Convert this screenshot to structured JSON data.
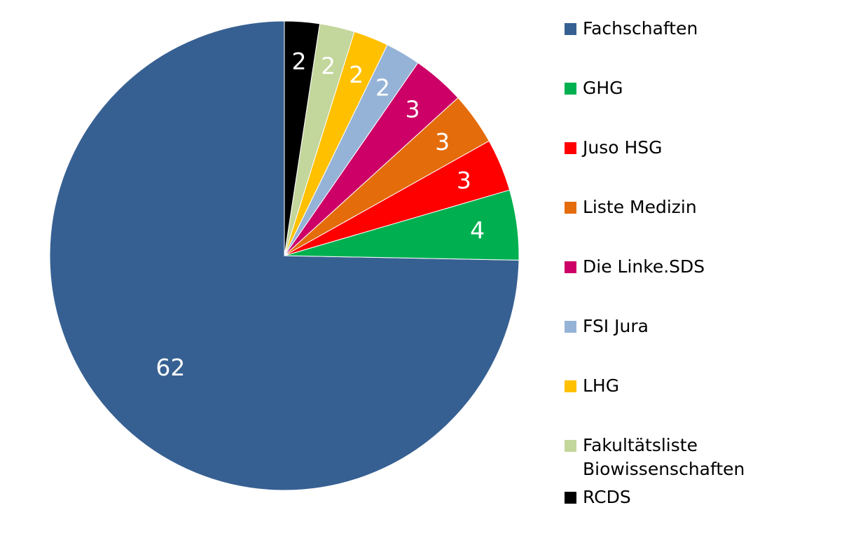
{
  "chart_data": {
    "type": "pie",
    "labels": [
      "Fachschaften",
      "GHG",
      "Juso HSG",
      "Liste Medizin",
      "Die Linke.SDS",
      "FSI Jura",
      "LHG",
      "Fakultätsliste Biowissenschaften",
      "RCDS"
    ],
    "values": [
      62,
      4,
      3,
      3,
      3,
      2,
      2,
      2,
      2
    ],
    "colors": [
      "#376092",
      "#00B050",
      "#FF0000",
      "#E46C0A",
      "#CC0066",
      "#95B3D7",
      "#FFC000",
      "#C3D69B",
      "#000000"
    ],
    "label_colors": [
      "#FFFFFF",
      "#FFFFFF",
      "#FFFFFF",
      "#FFFFFF",
      "#FFFFFF",
      "#FFFFFF",
      "#FFFFFF",
      "#FFFFFF",
      "#FFFFFF"
    ],
    "start": "top",
    "direction": "clockwise",
    "legend_position": "right"
  }
}
